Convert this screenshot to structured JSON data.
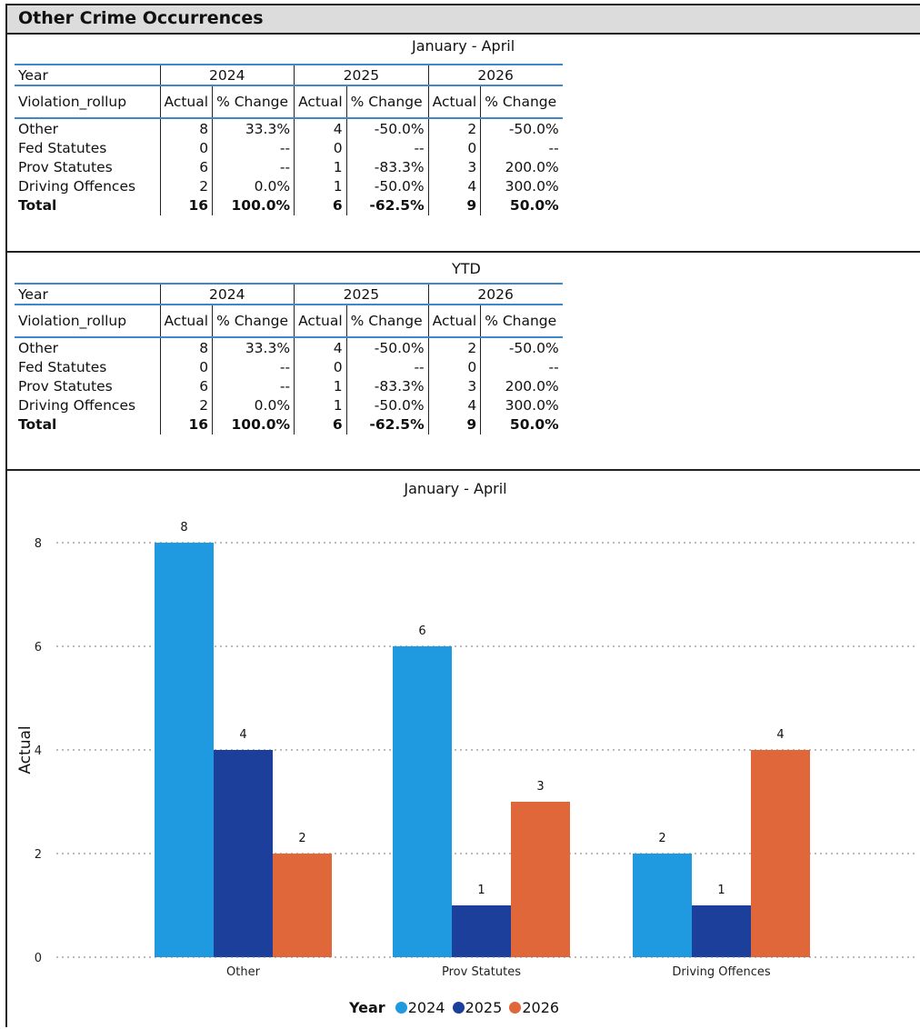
{
  "header": {
    "title": "Other Crime Occurrences"
  },
  "tables": [
    {
      "title": "January - April",
      "year_label": "Year",
      "years": [
        "2024",
        "2025",
        "2026"
      ],
      "row_header": "Violation_rollup",
      "col_actual": "Actual",
      "col_change": "% Change",
      "rows": [
        {
          "label": "Other",
          "cells": [
            "8",
            "33.3%",
            "4",
            "-50.0%",
            "2",
            "-50.0%"
          ]
        },
        {
          "label": "Fed Statutes",
          "cells": [
            "0",
            "--",
            "0",
            "--",
            "0",
            "--"
          ]
        },
        {
          "label": "Prov Statutes",
          "cells": [
            "6",
            "--",
            "1",
            "-83.3%",
            "3",
            "200.0%"
          ]
        },
        {
          "label": "Driving Offences",
          "cells": [
            "2",
            "0.0%",
            "1",
            "-50.0%",
            "4",
            "300.0%"
          ]
        },
        {
          "label": "Total",
          "cells": [
            "16",
            "100.0%",
            "6",
            "-62.5%",
            "9",
            "50.0%"
          ]
        }
      ]
    },
    {
      "title": "YTD",
      "year_label": "Year",
      "years": [
        "2024",
        "2025",
        "2026"
      ],
      "row_header": "Violation_rollup",
      "col_actual": "Actual",
      "col_change": "% Change",
      "rows": [
        {
          "label": "Other",
          "cells": [
            "8",
            "33.3%",
            "4",
            "-50.0%",
            "2",
            "-50.0%"
          ]
        },
        {
          "label": "Fed Statutes",
          "cells": [
            "0",
            "--",
            "0",
            "--",
            "0",
            "--"
          ]
        },
        {
          "label": "Prov Statutes",
          "cells": [
            "6",
            "--",
            "1",
            "-83.3%",
            "3",
            "200.0%"
          ]
        },
        {
          "label": "Driving Offences",
          "cells": [
            "2",
            "0.0%",
            "1",
            "-50.0%",
            "4",
            "300.0%"
          ]
        },
        {
          "label": "Total",
          "cells": [
            "16",
            "100.0%",
            "6",
            "-62.5%",
            "9",
            "50.0%"
          ]
        }
      ]
    }
  ],
  "chart_data": {
    "type": "bar",
    "title": "January - April",
    "xlabel": "",
    "ylabel": "Actual",
    "categories": [
      "Other",
      "Prov Statutes",
      "Driving Offences"
    ],
    "series": [
      {
        "name": "2024",
        "values": [
          8,
          6,
          2
        ]
      },
      {
        "name": "2025",
        "values": [
          4,
          1,
          1
        ]
      },
      {
        "name": "2026",
        "values": [
          2,
          3,
          4
        ]
      }
    ],
    "ylim": [
      0,
      8
    ],
    "yticks": [
      0,
      2,
      4,
      6,
      8
    ],
    "grid": true,
    "legend_title": "Year",
    "legend_position": "bottom-center",
    "colors": [
      "#1f9ae0",
      "#1c3f9c",
      "#e0673a"
    ]
  }
}
